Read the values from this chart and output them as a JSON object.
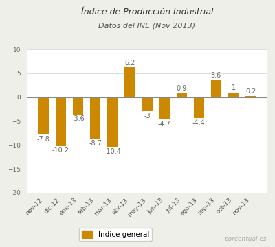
{
  "title": "Índice de Producción Industrial",
  "subtitle": "Datos del INE (Nov 2013)",
  "categories": [
    "nov-12",
    "dic-12",
    "ene-13",
    "feb-13",
    "mar-13",
    "abr-13",
    "may-13",
    "jun-13",
    "jul-13",
    "ago-13",
    "sep-13",
    "oct-13",
    "nov-13"
  ],
  "values": [
    -7.8,
    -10.2,
    -3.6,
    -8.7,
    -10.4,
    6.2,
    -3.0,
    -4.7,
    0.9,
    -4.4,
    3.6,
    1.0,
    0.2
  ],
  "bar_color": "#CC8800",
  "background_color": "#efefea",
  "plot_bg_color": "#ffffff",
  "grid_color": "#dddddd",
  "ylim": [
    -20,
    10
  ],
  "yticks": [
    -20,
    -15,
    -10,
    -5,
    0,
    5,
    10
  ],
  "legend_label": "Indice general",
  "watermark": "porcentual.es",
  "title_fontsize": 9,
  "subtitle_fontsize": 8,
  "label_fontsize": 7,
  "tick_fontsize": 6.5,
  "zero_line_color": "#888888"
}
